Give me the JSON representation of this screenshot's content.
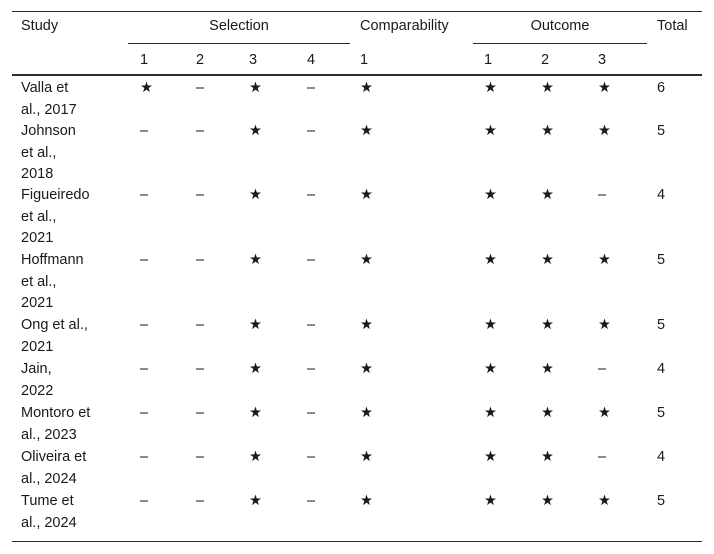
{
  "headers": {
    "study": "Study",
    "selection": "Selection",
    "comparability": "Comparability",
    "outcome": "Outcome",
    "total": "Total",
    "sub": [
      "1",
      "2",
      "3",
      "4",
      "1",
      "1",
      "2",
      "3"
    ]
  },
  "rows": [
    {
      "study": [
        "Valla et",
        "al., 2017"
      ],
      "sel": [
        "★",
        "–",
        "★",
        "–"
      ],
      "comp": "★",
      "out": [
        "★",
        "★",
        "★"
      ],
      "total": "6"
    },
    {
      "study": [
        "Johnson",
        "et al.,",
        "2018"
      ],
      "sel": [
        "–",
        "–",
        "★",
        "–"
      ],
      "comp": "★",
      "out": [
        "★",
        "★",
        "★"
      ],
      "total": "5"
    },
    {
      "study": [
        "Figueiredo",
        "et al.,",
        "2021"
      ],
      "sel": [
        "–",
        "–",
        "★",
        "–"
      ],
      "comp": "★",
      "out": [
        "★",
        "★",
        "–"
      ],
      "total": "4"
    },
    {
      "study": [
        "Hoffmann",
        "et al.,",
        "2021"
      ],
      "sel": [
        "–",
        "–",
        "★",
        "–"
      ],
      "comp": "★",
      "out": [
        "★",
        "★",
        "★"
      ],
      "total": "5"
    },
    {
      "study": [
        "Ong et al.,",
        "2021"
      ],
      "sel": [
        "–",
        "–",
        "★",
        "–"
      ],
      "comp": "★",
      "out": [
        "★",
        "★",
        "★"
      ],
      "total": "5"
    },
    {
      "study": [
        "Jain,",
        "2022"
      ],
      "sel": [
        "–",
        "–",
        "★",
        "–"
      ],
      "comp": "★",
      "out": [
        "★",
        "★",
        "–"
      ],
      "total": "4"
    },
    {
      "study": [
        "Montoro et",
        "al., 2023"
      ],
      "sel": [
        "–",
        "–",
        "★",
        "–"
      ],
      "comp": "★",
      "out": [
        "★",
        "★",
        "★"
      ],
      "total": "5"
    },
    {
      "study": [
        "Oliveira et",
        "al., 2024"
      ],
      "sel": [
        "–",
        "–",
        "★",
        "–"
      ],
      "comp": "★",
      "out": [
        "★",
        "★",
        "–"
      ],
      "total": "4"
    },
    {
      "study": [
        "Tume et",
        "al., 2024"
      ],
      "sel": [
        "–",
        "–",
        "★",
        "–"
      ],
      "comp": "★",
      "out": [
        "★",
        "★",
        "★"
      ],
      "total": "5"
    }
  ]
}
